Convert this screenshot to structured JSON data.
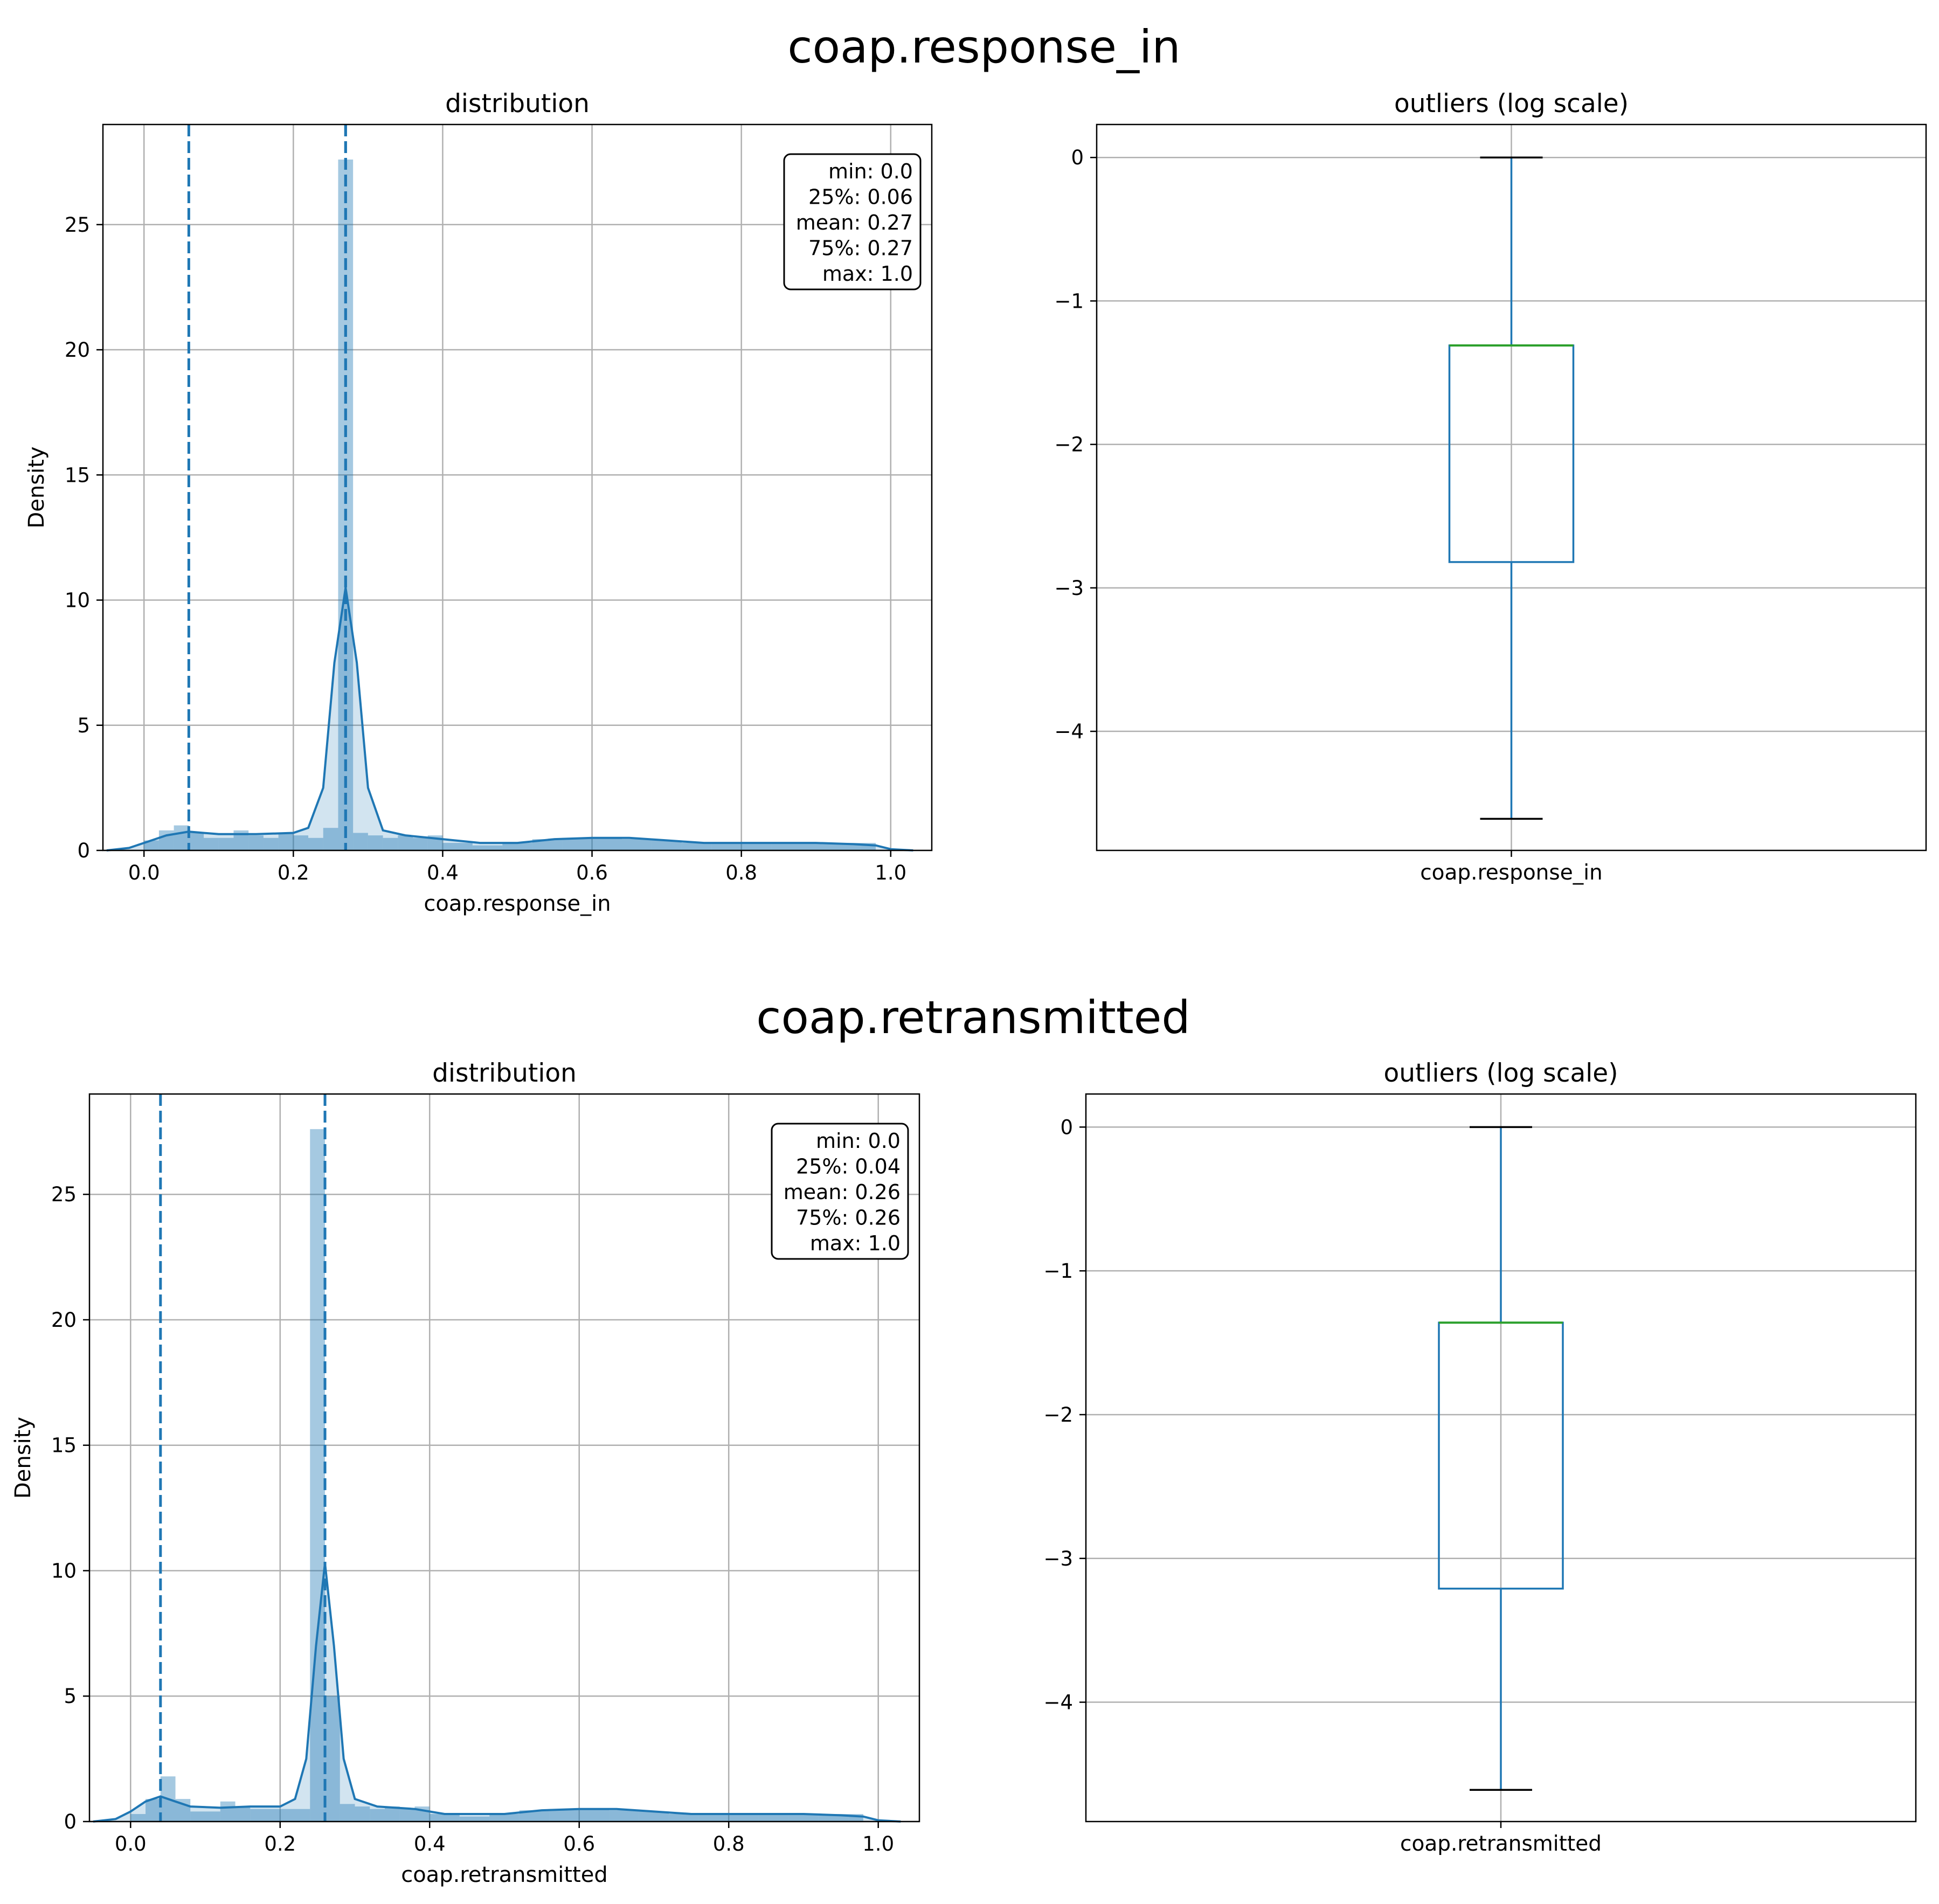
{
  "colors": {
    "accent": "#1f77b4",
    "hist_fill": "#1f77b4",
    "median": "#2ca02c",
    "whisker_cap": "#000000",
    "grid": "#b0b0b0"
  },
  "figures": [
    {
      "suptitle": "coap.response_in",
      "chart_data": [
        {
          "type": "histogram+kde",
          "title": "distribution",
          "xlabel": "coap.response_in",
          "ylabel": "Density",
          "xlim": [
            -0.055,
            1.055
          ],
          "ylim": [
            0,
            29
          ],
          "xticks": [
            0.0,
            0.2,
            0.4,
            0.6,
            0.8,
            1.0
          ],
          "xtick_labels": [
            "0.0",
            "0.2",
            "0.4",
            "0.6",
            "0.8",
            "1.0"
          ],
          "yticks": [
            0,
            5,
            10,
            15,
            20,
            25
          ],
          "ytick_labels": [
            "0",
            "5",
            "10",
            "15",
            "20",
            "25"
          ],
          "grid": true,
          "bins": [
            {
              "x0": 0.0,
              "x1": 0.02,
              "h": 0.4
            },
            {
              "x0": 0.02,
              "x1": 0.04,
              "h": 0.8
            },
            {
              "x0": 0.04,
              "x1": 0.06,
              "h": 1.0
            },
            {
              "x0": 0.06,
              "x1": 0.08,
              "h": 0.7
            },
            {
              "x0": 0.08,
              "x1": 0.1,
              "h": 0.5
            },
            {
              "x0": 0.1,
              "x1": 0.12,
              "h": 0.5
            },
            {
              "x0": 0.12,
              "x1": 0.14,
              "h": 0.8
            },
            {
              "x0": 0.14,
              "x1": 0.16,
              "h": 0.6
            },
            {
              "x0": 0.16,
              "x1": 0.18,
              "h": 0.5
            },
            {
              "x0": 0.18,
              "x1": 0.2,
              "h": 0.7
            },
            {
              "x0": 0.2,
              "x1": 0.22,
              "h": 0.6
            },
            {
              "x0": 0.22,
              "x1": 0.24,
              "h": 0.5
            },
            {
              "x0": 0.24,
              "x1": 0.26,
              "h": 0.9
            },
            {
              "x0": 0.26,
              "x1": 0.28,
              "h": 27.6
            },
            {
              "x0": 0.28,
              "x1": 0.3,
              "h": 0.7
            },
            {
              "x0": 0.3,
              "x1": 0.32,
              "h": 0.6
            },
            {
              "x0": 0.32,
              "x1": 0.34,
              "h": 0.5
            },
            {
              "x0": 0.34,
              "x1": 0.36,
              "h": 0.6
            },
            {
              "x0": 0.36,
              "x1": 0.38,
              "h": 0.5
            },
            {
              "x0": 0.38,
              "x1": 0.4,
              "h": 0.6
            },
            {
              "x0": 0.4,
              "x1": 0.44,
              "h": 0.3
            },
            {
              "x0": 0.44,
              "x1": 0.48,
              "h": 0.2
            },
            {
              "x0": 0.48,
              "x1": 0.52,
              "h": 0.3
            },
            {
              "x0": 0.52,
              "x1": 0.56,
              "h": 0.45
            },
            {
              "x0": 0.56,
              "x1": 0.6,
              "h": 0.5
            },
            {
              "x0": 0.6,
              "x1": 0.64,
              "h": 0.5
            },
            {
              "x0": 0.64,
              "x1": 0.68,
              "h": 0.45
            },
            {
              "x0": 0.68,
              "x1": 0.72,
              "h": 0.4
            },
            {
              "x0": 0.72,
              "x1": 0.76,
              "h": 0.3
            },
            {
              "x0": 0.76,
              "x1": 0.8,
              "h": 0.3
            },
            {
              "x0": 0.8,
              "x1": 0.84,
              "h": 0.3
            },
            {
              "x0": 0.84,
              "x1": 0.88,
              "h": 0.3
            },
            {
              "x0": 0.88,
              "x1": 0.92,
              "h": 0.3
            },
            {
              "x0": 0.92,
              "x1": 0.96,
              "h": 0.3
            },
            {
              "x0": 0.96,
              "x1": 0.98,
              "h": 0.3
            }
          ],
          "kde": [
            [
              -0.05,
              0.0
            ],
            [
              -0.02,
              0.1
            ],
            [
              0.0,
              0.3
            ],
            [
              0.03,
              0.6
            ],
            [
              0.06,
              0.75
            ],
            [
              0.1,
              0.65
            ],
            [
              0.15,
              0.65
            ],
            [
              0.2,
              0.7
            ],
            [
              0.22,
              0.9
            ],
            [
              0.24,
              2.5
            ],
            [
              0.255,
              7.5
            ],
            [
              0.27,
              10.5
            ],
            [
              0.285,
              7.5
            ],
            [
              0.3,
              2.5
            ],
            [
              0.32,
              0.8
            ],
            [
              0.35,
              0.6
            ],
            [
              0.4,
              0.45
            ],
            [
              0.45,
              0.3
            ],
            [
              0.5,
              0.3
            ],
            [
              0.55,
              0.45
            ],
            [
              0.6,
              0.5
            ],
            [
              0.65,
              0.5
            ],
            [
              0.7,
              0.4
            ],
            [
              0.75,
              0.3
            ],
            [
              0.8,
              0.3
            ],
            [
              0.85,
              0.3
            ],
            [
              0.9,
              0.3
            ],
            [
              0.95,
              0.25
            ],
            [
              0.98,
              0.2
            ],
            [
              1.0,
              0.05
            ],
            [
              1.03,
              0.0
            ]
          ],
          "vlines": [
            {
              "label": "25%",
              "x": 0.06
            },
            {
              "label": "mean",
              "x": 0.27
            },
            {
              "label": "75%",
              "x": 0.27
            }
          ],
          "stats": [
            "min: 0.0",
            "25%: 0.06",
            "mean: 0.27",
            "75%: 0.27",
            "max: 1.0"
          ],
          "stats_placement": "upper-right"
        },
        {
          "type": "box",
          "title": "outliers (log scale)",
          "category": "coap.response_in",
          "ylim": [
            -4.83,
            0.23
          ],
          "yticks": [
            0,
            -1,
            -2,
            -3,
            -4
          ],
          "ytick_labels": [
            "0",
            "−1",
            "−2",
            "−3",
            "−4"
          ],
          "grid": true,
          "whisker_high": 0.0,
          "q3": -1.31,
          "median": -1.31,
          "q1": -2.82,
          "whisker_low": -4.61
        }
      ]
    },
    {
      "suptitle": "coap.retransmitted",
      "chart_data": [
        {
          "type": "histogram+kde",
          "title": "distribution",
          "xlabel": "coap.retransmitted",
          "ylabel": "Density",
          "xlim": [
            -0.055,
            1.055
          ],
          "ylim": [
            0,
            29
          ],
          "xticks": [
            0.0,
            0.2,
            0.4,
            0.6,
            0.8,
            1.0
          ],
          "xtick_labels": [
            "0.0",
            "0.2",
            "0.4",
            "0.6",
            "0.8",
            "1.0"
          ],
          "yticks": [
            0,
            5,
            10,
            15,
            20,
            25
          ],
          "ytick_labels": [
            "0",
            "5",
            "10",
            "15",
            "20",
            "25"
          ],
          "grid": true,
          "bins": [
            {
              "x0": 0.0,
              "x1": 0.02,
              "h": 0.3
            },
            {
              "x0": 0.02,
              "x1": 0.04,
              "h": 0.9
            },
            {
              "x0": 0.04,
              "x1": 0.06,
              "h": 1.8
            },
            {
              "x0": 0.06,
              "x1": 0.08,
              "h": 0.9
            },
            {
              "x0": 0.08,
              "x1": 0.1,
              "h": 0.4
            },
            {
              "x0": 0.1,
              "x1": 0.12,
              "h": 0.4
            },
            {
              "x0": 0.12,
              "x1": 0.14,
              "h": 0.8
            },
            {
              "x0": 0.14,
              "x1": 0.16,
              "h": 0.6
            },
            {
              "x0": 0.16,
              "x1": 0.18,
              "h": 0.5
            },
            {
              "x0": 0.18,
              "x1": 0.2,
              "h": 0.5
            },
            {
              "x0": 0.2,
              "x1": 0.22,
              "h": 0.5
            },
            {
              "x0": 0.22,
              "x1": 0.24,
              "h": 0.5
            },
            {
              "x0": 0.24,
              "x1": 0.26,
              "h": 27.6
            },
            {
              "x0": 0.26,
              "x1": 0.28,
              "h": 5.0
            },
            {
              "x0": 0.28,
              "x1": 0.3,
              "h": 0.7
            },
            {
              "x0": 0.3,
              "x1": 0.32,
              "h": 0.6
            },
            {
              "x0": 0.32,
              "x1": 0.34,
              "h": 0.5
            },
            {
              "x0": 0.34,
              "x1": 0.36,
              "h": 0.6
            },
            {
              "x0": 0.36,
              "x1": 0.38,
              "h": 0.5
            },
            {
              "x0": 0.38,
              "x1": 0.4,
              "h": 0.6
            },
            {
              "x0": 0.4,
              "x1": 0.44,
              "h": 0.3
            },
            {
              "x0": 0.44,
              "x1": 0.48,
              "h": 0.2
            },
            {
              "x0": 0.48,
              "x1": 0.52,
              "h": 0.3
            },
            {
              "x0": 0.52,
              "x1": 0.56,
              "h": 0.45
            },
            {
              "x0": 0.56,
              "x1": 0.6,
              "h": 0.5
            },
            {
              "x0": 0.6,
              "x1": 0.64,
              "h": 0.5
            },
            {
              "x0": 0.64,
              "x1": 0.68,
              "h": 0.45
            },
            {
              "x0": 0.68,
              "x1": 0.72,
              "h": 0.4
            },
            {
              "x0": 0.72,
              "x1": 0.76,
              "h": 0.3
            },
            {
              "x0": 0.76,
              "x1": 0.8,
              "h": 0.3
            },
            {
              "x0": 0.8,
              "x1": 0.84,
              "h": 0.3
            },
            {
              "x0": 0.84,
              "x1": 0.88,
              "h": 0.3
            },
            {
              "x0": 0.88,
              "x1": 0.92,
              "h": 0.3
            },
            {
              "x0": 0.92,
              "x1": 0.96,
              "h": 0.3
            },
            {
              "x0": 0.96,
              "x1": 0.98,
              "h": 0.3
            }
          ],
          "kde": [
            [
              -0.05,
              0.0
            ],
            [
              -0.02,
              0.1
            ],
            [
              0.0,
              0.4
            ],
            [
              0.02,
              0.8
            ],
            [
              0.04,
              1.0
            ],
            [
              0.06,
              0.8
            ],
            [
              0.08,
              0.6
            ],
            [
              0.12,
              0.55
            ],
            [
              0.16,
              0.6
            ],
            [
              0.2,
              0.6
            ],
            [
              0.22,
              0.9
            ],
            [
              0.235,
              2.5
            ],
            [
              0.248,
              7.0
            ],
            [
              0.26,
              10.3
            ],
            [
              0.272,
              7.0
            ],
            [
              0.285,
              2.5
            ],
            [
              0.3,
              0.9
            ],
            [
              0.33,
              0.6
            ],
            [
              0.38,
              0.5
            ],
            [
              0.42,
              0.3
            ],
            [
              0.5,
              0.3
            ],
            [
              0.55,
              0.45
            ],
            [
              0.6,
              0.5
            ],
            [
              0.65,
              0.5
            ],
            [
              0.7,
              0.4
            ],
            [
              0.75,
              0.3
            ],
            [
              0.8,
              0.3
            ],
            [
              0.85,
              0.3
            ],
            [
              0.9,
              0.3
            ],
            [
              0.95,
              0.25
            ],
            [
              0.98,
              0.2
            ],
            [
              1.0,
              0.05
            ],
            [
              1.03,
              0.0
            ]
          ],
          "vlines": [
            {
              "label": "25%",
              "x": 0.04
            },
            {
              "label": "mean",
              "x": 0.26
            },
            {
              "label": "75%",
              "x": 0.26
            }
          ],
          "stats": [
            "min: 0.0",
            "25%: 0.04",
            "mean: 0.26",
            "75%: 0.26",
            "max: 1.0"
          ],
          "stats_placement": "upper-right"
        },
        {
          "type": "box",
          "title": "outliers (log scale)",
          "category": "coap.retransmitted",
          "ylim": [
            -4.83,
            0.23
          ],
          "yticks": [
            0,
            -1,
            -2,
            -3,
            -4
          ],
          "ytick_labels": [
            "0",
            "−1",
            "−2",
            "−3",
            "−4"
          ],
          "grid": true,
          "whisker_high": 0.0,
          "q3": -1.36,
          "median": -1.36,
          "q1": -3.21,
          "whisker_low": -4.61
        }
      ]
    }
  ]
}
